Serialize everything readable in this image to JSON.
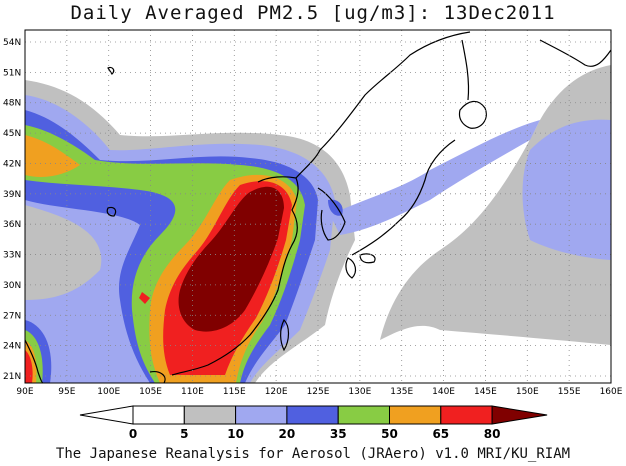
{
  "header": {
    "title": "Daily Averaged PM2.5 [ug/m3]: 13Dec2011"
  },
  "footer": {
    "credit": "The Japanese Reanalysis for Aerosol (JRAero) v1.0 MRI/KU_RIAM"
  },
  "map": {
    "lon_labels": [
      "90E",
      "95E",
      "100E",
      "105E",
      "110E",
      "115E",
      "120E",
      "125E",
      "130E",
      "135E",
      "140E",
      "145E",
      "150E",
      "155E",
      "160E"
    ],
    "lat_labels": [
      "54N",
      "51N",
      "48N",
      "45N",
      "42N",
      "39N",
      "36N",
      "33N",
      "30N",
      "27N",
      "24N",
      "21N"
    ]
  },
  "colorbar": {
    "levels": [
      "0",
      "5",
      "10",
      "20",
      "35",
      "50",
      "65",
      "80"
    ],
    "colors": [
      "#ffffff",
      "#c0c0c0",
      "#a0a8f0",
      "#5060e0",
      "#88cc44",
      "#f0a020",
      "#f02020",
      "#800000"
    ]
  }
}
